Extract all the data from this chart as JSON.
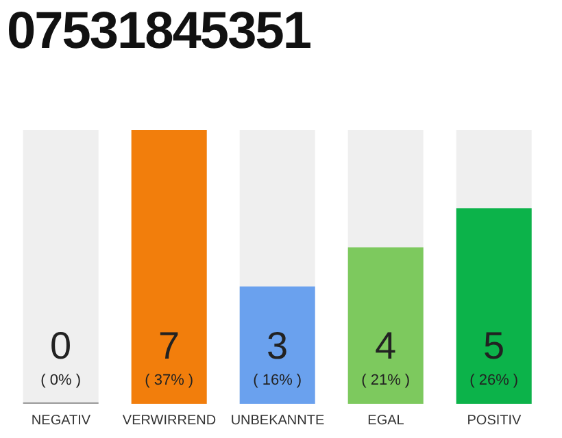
{
  "chart_data": {
    "type": "bar",
    "title": "07531845351",
    "categories": [
      "NEGATIV",
      "VERWIRREND",
      "UNBEKANNTE",
      "EGAL",
      "POSITIV"
    ],
    "values": [
      0,
      7,
      3,
      4,
      5
    ],
    "colors": [
      "#999999",
      "#f27e0c",
      "#6aa1ee",
      "#7dc95e",
      "#0cb34a"
    ],
    "data_labels": true,
    "annotations": [
      "( 0% )",
      "( 37% )",
      "( 16% )",
      "( 21% )",
      "( 26% )"
    ]
  }
}
